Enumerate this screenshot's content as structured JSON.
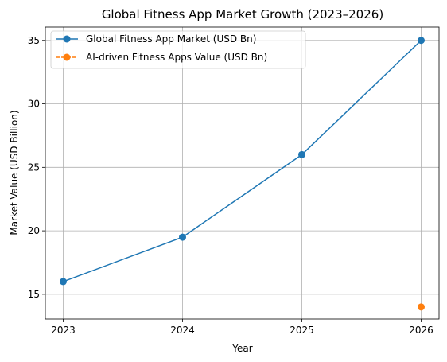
{
  "chart_data": {
    "type": "line",
    "title": "Global Fitness App Market Growth (2023–2026)",
    "xlabel": "Year",
    "ylabel": "Market Value (USD Billion)",
    "x": [
      2023,
      2024,
      2025,
      2026
    ],
    "x_tick_labels": [
      "2023",
      "2024",
      "2025",
      "2026"
    ],
    "xlim": [
      2022.85,
      2026.15
    ],
    "y_ticks": [
      15,
      20,
      25,
      30,
      35
    ],
    "ylim": [
      13.05,
      36.05
    ],
    "grid": true,
    "legend_position": "top-left",
    "series": [
      {
        "name": "Global Fitness App Market (USD Bn)",
        "values": [
          16,
          19.5,
          26,
          35
        ],
        "color": "#1f77b4",
        "line_style": "solid",
        "marker": "circle"
      },
      {
        "name": "AI-driven Fitness Apps Value (USD Bn)",
        "values": [
          null,
          null,
          null,
          14
        ],
        "color": "#ff7f0e",
        "line_style": "dashed",
        "marker": "circle"
      }
    ]
  }
}
